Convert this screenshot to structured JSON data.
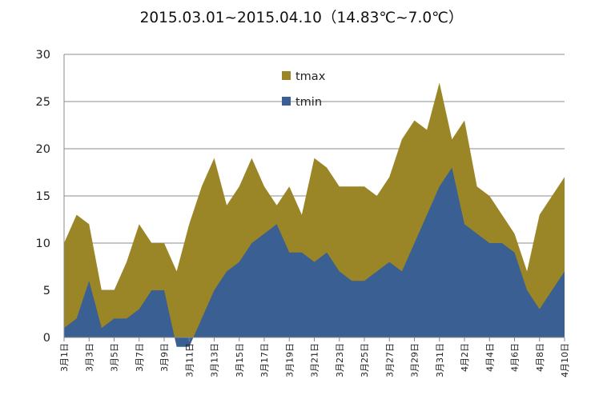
{
  "title": "2015.03.01~2015.04.10（14.83℃~7.0℃）",
  "chart_data": {
    "type": "area",
    "title": "2015.03.01~2015.04.10（14.83℃~7.0℃）",
    "categories": [
      "3月1日",
      "3月2日",
      "3月3日",
      "3月4日",
      "3月5日",
      "3月6日",
      "3月7日",
      "3月8日",
      "3月9日",
      "3月10日",
      "3月11日",
      "3月12日",
      "3月13日",
      "3月14日",
      "3月15日",
      "3月16日",
      "3月17日",
      "3月18日",
      "3月19日",
      "3月20日",
      "3月21日",
      "3月22日",
      "3月23日",
      "3月24日",
      "3月25日",
      "3月26日",
      "3月27日",
      "3月28日",
      "3月29日",
      "3月30日",
      "3月31日",
      "4月1日",
      "4月2日",
      "4月3日",
      "4月4日",
      "4月5日",
      "4月6日",
      "4月7日",
      "4月8日",
      "4月9日",
      "4月10日"
    ],
    "tick_labels": [
      "3月1日",
      "3月3日",
      "3月5日",
      "3月7日",
      "3月9日",
      "3月11日",
      "3月13日",
      "3月15日",
      "3月17日",
      "3月19日",
      "3月21日",
      "3月23日",
      "3月25日",
      "3月27日",
      "3月29日",
      "3月31日",
      "4月2日",
      "4月4日",
      "4月6日",
      "4月8日",
      "4月10日"
    ],
    "series": [
      {
        "name": "tmax",
        "color": "#9a8527",
        "values": [
          10,
          13,
          12,
          5,
          5,
          8,
          12,
          10,
          10,
          7,
          12,
          16,
          19,
          14,
          16,
          19,
          16,
          14,
          16,
          13,
          19,
          18,
          16,
          16,
          16,
          15,
          17,
          21,
          23,
          22,
          27,
          21,
          23,
          16,
          15,
          13,
          11,
          7,
          13,
          15,
          17
        ]
      },
      {
        "name": "tmin",
        "color": "#3a5f93",
        "values": [
          1,
          2,
          6,
          1,
          2,
          2,
          3,
          5,
          5,
          -1,
          -1,
          2,
          5,
          7,
          8,
          10,
          11,
          12,
          9,
          9,
          8,
          9,
          7,
          6,
          6,
          7,
          8,
          7,
          10,
          13,
          16,
          18,
          12,
          11,
          10,
          10,
          9,
          5,
          3,
          5,
          7
        ]
      }
    ],
    "yticks": [
      0,
      5,
      10,
      15,
      20,
      25,
      30
    ],
    "ylim": [
      0,
      30
    ],
    "xlabel": "",
    "ylabel": "",
    "grid": true,
    "legend": [
      "tmax",
      "tmin"
    ],
    "legend_position": "top-center"
  }
}
